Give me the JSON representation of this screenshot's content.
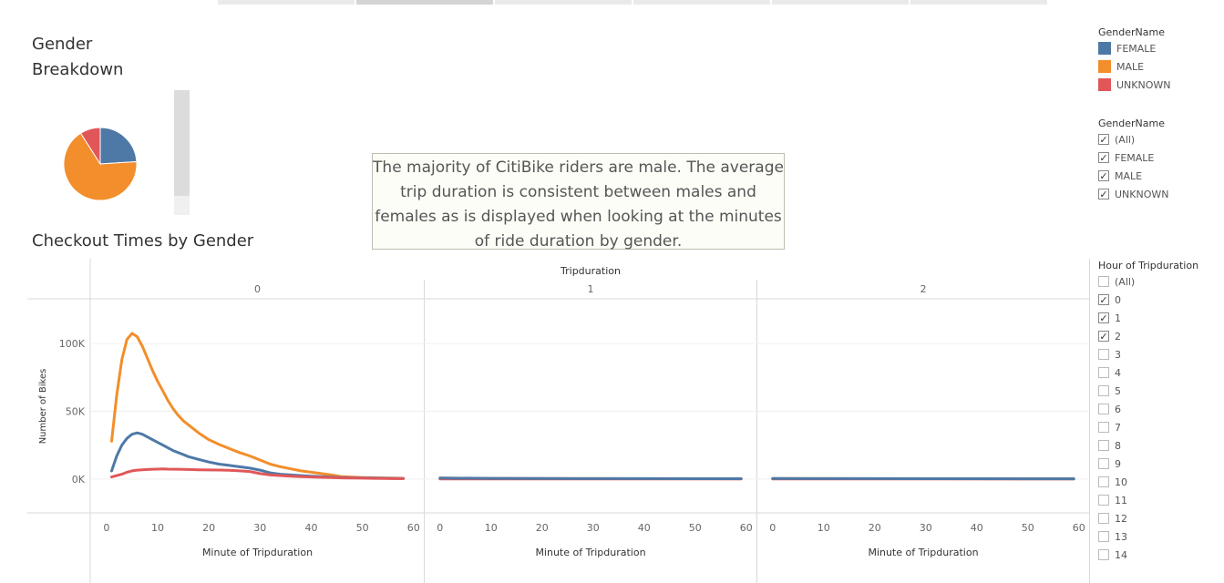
{
  "tabs": [
    {
      "label": ""
    },
    {
      "label": ""
    },
    {
      "label": ""
    },
    {
      "label": ""
    },
    {
      "label": ""
    },
    {
      "label": ""
    }
  ],
  "pie_title_lines": [
    "Gender",
    "Breakdown"
  ],
  "line_title": "Checkout Times by Gender",
  "annotation": "The majority of CitiBike riders are male. The average trip duration is consistent between males and females as is displayed when looking at the minutes of ride duration by gender.",
  "colors": {
    "female": "#4e79a7",
    "male": "#f28e2b",
    "unknown": "#e15759"
  },
  "color_legend": {
    "title": "GenderName",
    "items": [
      {
        "label": "FEMALE",
        "color": "#4e79a7"
      },
      {
        "label": "MALE",
        "color": "#f28e2b"
      },
      {
        "label": "UNKNOWN",
        "color": "#e15759"
      }
    ]
  },
  "gender_filter": {
    "title": "GenderName",
    "items": [
      {
        "label": "(All)",
        "checked": true
      },
      {
        "label": "FEMALE",
        "checked": true
      },
      {
        "label": "MALE",
        "checked": true
      },
      {
        "label": "UNKNOWN",
        "checked": true
      }
    ]
  },
  "hour_filter": {
    "title": "Hour of Tripduration",
    "items": [
      {
        "label": "(All)",
        "checked": false
      },
      {
        "label": "0",
        "checked": true
      },
      {
        "label": "1",
        "checked": true
      },
      {
        "label": "2",
        "checked": true
      },
      {
        "label": "3",
        "checked": false
      },
      {
        "label": "4",
        "checked": false
      },
      {
        "label": "5",
        "checked": false
      },
      {
        "label": "6",
        "checked": false
      },
      {
        "label": "7",
        "checked": false
      },
      {
        "label": "8",
        "checked": false
      },
      {
        "label": "9",
        "checked": false
      },
      {
        "label": "10",
        "checked": false
      },
      {
        "label": "11",
        "checked": false
      },
      {
        "label": "12",
        "checked": false
      },
      {
        "label": "13",
        "checked": false
      },
      {
        "label": "14",
        "checked": false
      }
    ]
  },
  "chart_data": [
    {
      "type": "pie",
      "slices": [
        {
          "label": "FEMALE",
          "value": 24,
          "color": "#4e79a7"
        },
        {
          "label": "MALE",
          "value": 67,
          "color": "#f28e2b"
        },
        {
          "label": "UNKNOWN",
          "value": 9,
          "color": "#e15759"
        }
      ]
    },
    {
      "type": "line",
      "header_label": "Tripduration",
      "ylabel": "Number of Bikes",
      "xlabel": "Minute of Tripduration",
      "ylim": [
        -25000,
        133000
      ],
      "yticks": [
        {
          "value": 0,
          "label": "0K"
        },
        {
          "value": 50000,
          "label": "50K"
        },
        {
          "value": 100000,
          "label": "100K"
        }
      ],
      "xlim": [
        -3,
        62
      ],
      "xticks": [
        0,
        10,
        20,
        30,
        40,
        50,
        60
      ],
      "panels": [
        {
          "label": "0",
          "series": [
            {
              "name": "MALE",
              "color": "#f28e2b",
              "x": [
                1,
                2,
                3,
                4,
                5,
                6,
                7,
                8,
                9,
                10,
                11,
                12,
                13,
                14,
                15,
                16,
                18,
                20,
                22,
                24,
                26,
                28,
                30,
                32,
                34,
                36,
                38,
                40,
                42,
                44,
                46,
                48,
                50,
                52,
                54,
                56,
                58
              ],
              "y": [
                28000,
                62000,
                88000,
                103000,
                107500,
                105000,
                98000,
                89000,
                80000,
                72000,
                65000,
                58000,
                52000,
                47000,
                43000,
                40000,
                34000,
                29000,
                25500,
                22500,
                19500,
                17000,
                14000,
                11000,
                9000,
                7500,
                6000,
                5000,
                4000,
                3000,
                1700,
                1400,
                1100,
                900,
                700,
                600,
                500
              ]
            },
            {
              "name": "FEMALE",
              "color": "#4e79a7",
              "x": [
                1,
                2,
                3,
                4,
                5,
                6,
                7,
                8,
                9,
                10,
                11,
                12,
                13,
                14,
                15,
                16,
                18,
                20,
                22,
                24,
                26,
                28,
                30,
                32,
                34,
                36,
                38,
                40,
                42,
                44,
                46,
                48,
                50,
                52,
                54,
                56,
                58
              ],
              "y": [
                6000,
                17000,
                25000,
                30000,
                33000,
                34000,
                33000,
                31000,
                29000,
                27000,
                25000,
                23000,
                21000,
                19500,
                18000,
                16500,
                14500,
                12500,
                11000,
                10000,
                9000,
                8000,
                6500,
                4500,
                3500,
                3000,
                2500,
                2000,
                1700,
                1400,
                1100,
                900,
                800,
                700,
                600,
                500,
                400
              ]
            },
            {
              "name": "UNKNOWN",
              "color": "#e15759",
              "x": [
                1,
                2,
                3,
                4,
                5,
                6,
                7,
                8,
                9,
                10,
                11,
                12,
                14,
                16,
                18,
                20,
                22,
                24,
                26,
                28,
                30,
                32,
                34,
                36,
                38,
                40,
                42,
                44,
                46,
                48,
                50,
                52,
                54,
                56,
                58
              ],
              "y": [
                1500,
                2500,
                3500,
                5000,
                6000,
                6500,
                6800,
                7000,
                7200,
                7300,
                7400,
                7300,
                7200,
                7000,
                6800,
                6700,
                6600,
                6400,
                6000,
                5500,
                4000,
                3000,
                2500,
                2000,
                1700,
                1500,
                1200,
                1000,
                800,
                700,
                600,
                500,
                400,
                300,
                300
              ]
            }
          ]
        },
        {
          "label": "1",
          "series": [
            {
              "name": "MALE",
              "color": "#f28e2b",
              "x": [
                0,
                10,
                20,
                30,
                40,
                50,
                59
              ],
              "y": [
                600,
                400,
                300,
                250,
                200,
                180,
                150
              ]
            },
            {
              "name": "UNKNOWN",
              "color": "#e15759",
              "x": [
                0,
                10,
                20,
                30,
                40,
                50,
                59
              ],
              "y": [
                100,
                80,
                60,
                50,
                40,
                30,
                30
              ]
            },
            {
              "name": "FEMALE",
              "color": "#4e79a7",
              "x": [
                0,
                10,
                20,
                30,
                40,
                50,
                59
              ],
              "y": [
                700,
                500,
                400,
                300,
                250,
                200,
                180
              ]
            }
          ]
        },
        {
          "label": "2",
          "series": [
            {
              "name": "MALE",
              "color": "#f28e2b",
              "x": [
                0,
                10,
                20,
                30,
                40,
                50,
                59
              ],
              "y": [
                300,
                250,
                200,
                180,
                150,
                130,
                120
              ]
            },
            {
              "name": "UNKNOWN",
              "color": "#e15759",
              "x": [
                0,
                10,
                20,
                30,
                40,
                50,
                59
              ],
              "y": [
                50,
                40,
                30,
                30,
                25,
                20,
                20
              ]
            },
            {
              "name": "FEMALE",
              "color": "#4e79a7",
              "x": [
                0,
                10,
                20,
                30,
                40,
                50,
                59
              ],
              "y": [
                400,
                300,
                250,
                200,
                180,
                160,
                150
              ]
            }
          ]
        }
      ]
    }
  ]
}
